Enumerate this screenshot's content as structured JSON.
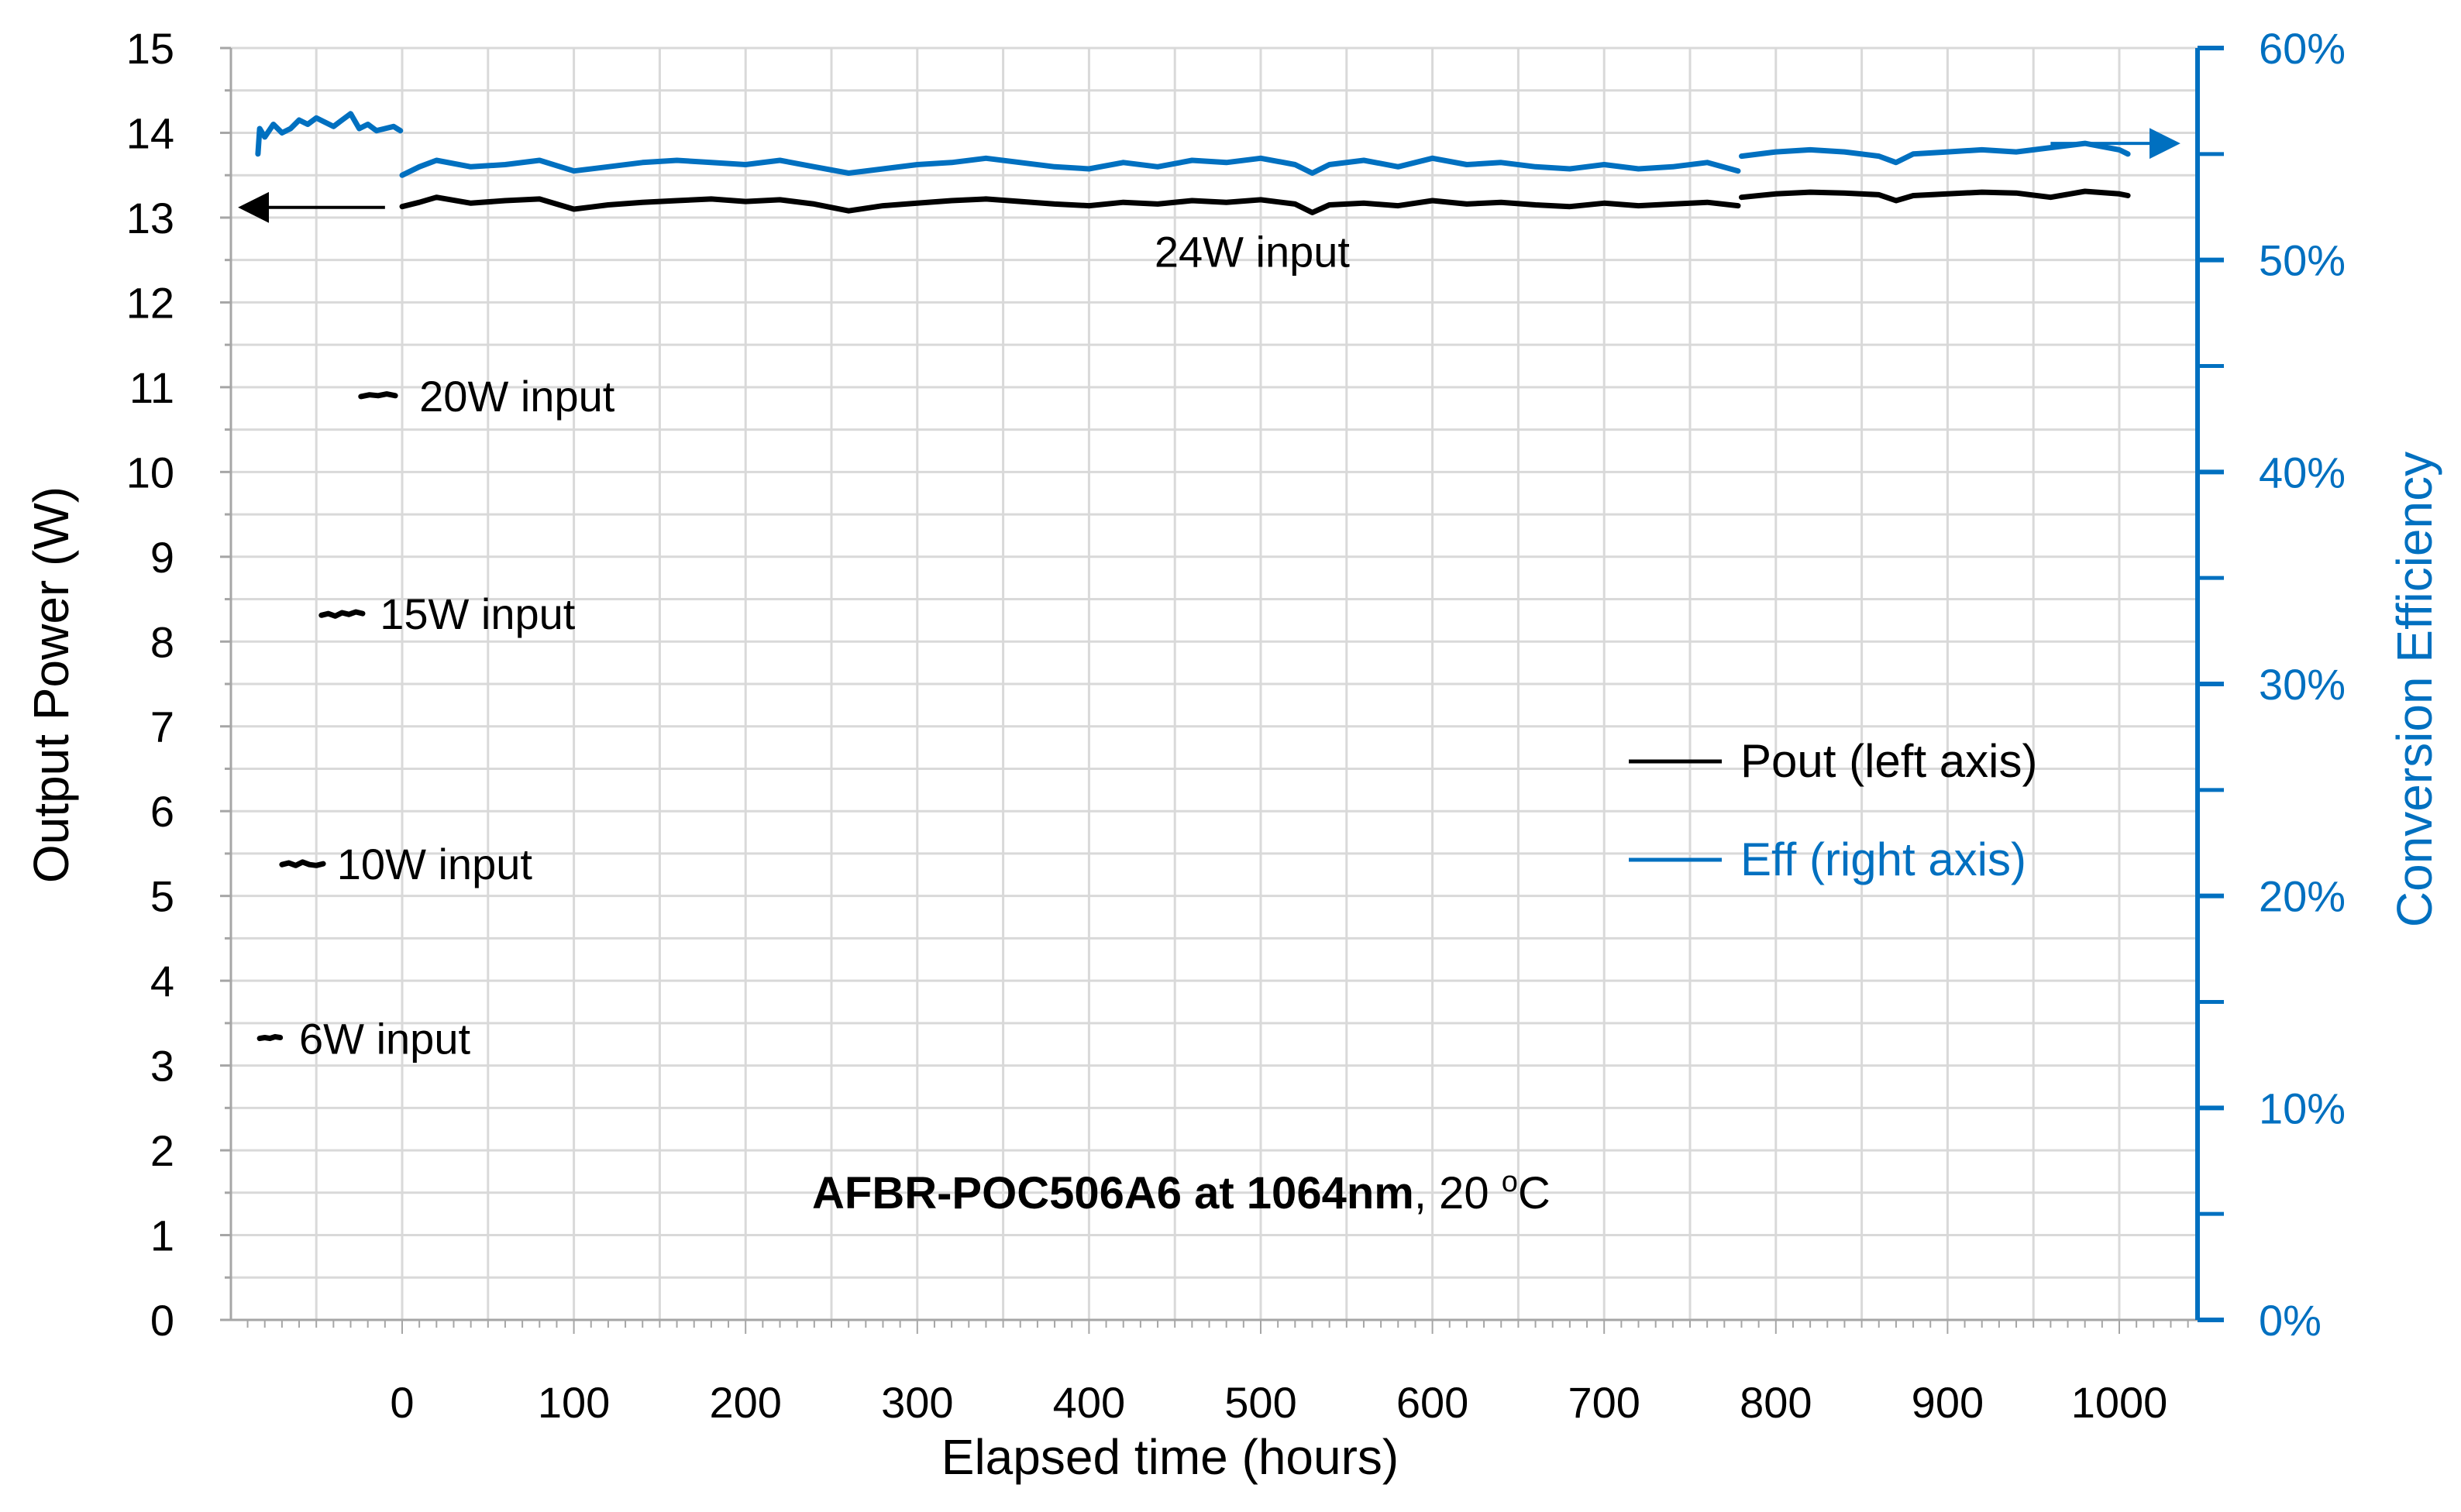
{
  "chart_data": {
    "type": "line",
    "title": "",
    "xlabel": "Elapsed time (hours)",
    "ylabel_left": "Output Power (W)",
    "ylabel_right": "Conversion Efficiency",
    "xlim": [
      -100,
      1040
    ],
    "ylim_left": [
      0,
      15
    ],
    "ylim_right": [
      0,
      60
    ],
    "x_ticks": [
      "0",
      "100",
      "200",
      "300",
      "400",
      "500",
      "600",
      "700",
      "800",
      "900",
      "1000"
    ],
    "y_left_ticks": [
      "0",
      "1",
      "2",
      "3",
      "4",
      "5",
      "6",
      "7",
      "8",
      "9",
      "10",
      "11",
      "12",
      "13",
      "14",
      "15"
    ],
    "y_right_ticks": [
      "0%",
      "10%",
      "20%",
      "30%",
      "40%",
      "50%",
      "60%"
    ],
    "grid": true,
    "legend_position": "center-right",
    "legend": [
      {
        "label": "Pout (left axis)",
        "color": "#000000"
      },
      {
        "label": "Eff (right axis)",
        "color": "#0070C0"
      }
    ],
    "series": [
      {
        "name": "Pout (left axis)",
        "axis": "left",
        "color": "#000000",
        "segments": [
          {
            "x": [
              -83,
              -80,
              -77,
              -74,
              -71
            ],
            "y": [
              3.32,
              3.33,
              3.32,
              3.34,
              3.33
            ]
          },
          {
            "x": [
              -70,
              -66,
              -62,
              -58,
              -54,
              -50,
              -46
            ],
            "y": [
              5.37,
              5.39,
              5.36,
              5.4,
              5.37,
              5.36,
              5.38
            ]
          },
          {
            "x": [
              -47,
              -43,
              -39,
              -35,
              -31,
              -27,
              -23
            ],
            "y": [
              8.31,
              8.33,
              8.3,
              8.34,
              8.32,
              8.35,
              8.33
            ]
          },
          {
            "x": [
              -24,
              -19,
              -14,
              -9,
              -4
            ],
            "y": [
              10.89,
              10.91,
              10.9,
              10.92,
              10.9
            ]
          },
          {
            "x": [
              0,
              10,
              20,
              40,
              60,
              80,
              100,
              120,
              140,
              160,
              180,
              200,
              220,
              240,
              260,
              280,
              300,
              320,
              340,
              360,
              380,
              400,
              420,
              440,
              460,
              480,
              500,
              520,
              530,
              540,
              560,
              580,
              600,
              620,
              640,
              660,
              680,
              700,
              720,
              740,
              760,
              778
            ],
            "y": [
              13.13,
              13.18,
              13.24,
              13.17,
              13.2,
              13.22,
              13.1,
              13.15,
              13.18,
              13.2,
              13.22,
              13.19,
              13.21,
              13.16,
              13.08,
              13.14,
              13.17,
              13.2,
              13.22,
              13.19,
              13.16,
              13.14,
              13.18,
              13.16,
              13.2,
              13.18,
              13.21,
              13.16,
              13.06,
              13.15,
              13.17,
              13.14,
              13.2,
              13.16,
              13.18,
              13.15,
              13.13,
              13.17,
              13.14,
              13.16,
              13.18,
              13.14
            ]
          },
          {
            "x": [
              780,
              800,
              820,
              840,
              860,
              870,
              880,
              900,
              920,
              940,
              960,
              980,
              1000,
              1005
            ],
            "y": [
              13.24,
              13.28,
              13.3,
              13.29,
              13.27,
              13.2,
              13.26,
              13.28,
              13.3,
              13.29,
              13.24,
              13.31,
              13.28,
              13.26
            ]
          }
        ]
      },
      {
        "name": "Eff (right axis)",
        "axis": "right",
        "color": "#0070C0",
        "segments": [
          {
            "x": [
              -84,
              -83,
              -80,
              -75,
              -70,
              -65,
              -60,
              -55,
              -50,
              -45,
              -40,
              -35,
              -30,
              -25,
              -20,
              -15,
              -10,
              -5,
              -1
            ],
            "y": [
              55.0,
              56.2,
              55.8,
              56.4,
              56.0,
              56.2,
              56.6,
              56.4,
              56.7,
              56.5,
              56.3,
              56.6,
              56.9,
              56.2,
              56.4,
              56.1,
              56.2,
              56.3,
              56.1
            ]
          },
          {
            "x": [
              0,
              10,
              20,
              40,
              60,
              80,
              100,
              120,
              140,
              160,
              180,
              200,
              220,
              240,
              260,
              280,
              300,
              320,
              340,
              360,
              380,
              400,
              420,
              440,
              460,
              480,
              500,
              520,
              530,
              540,
              560,
              580,
              600,
              620,
              640,
              660,
              680,
              700,
              720,
              740,
              760,
              778
            ],
            "y": [
              54.0,
              54.4,
              54.7,
              54.4,
              54.5,
              54.7,
              54.2,
              54.4,
              54.6,
              54.7,
              54.6,
              54.5,
              54.7,
              54.4,
              54.1,
              54.3,
              54.5,
              54.6,
              54.8,
              54.6,
              54.4,
              54.3,
              54.6,
              54.4,
              54.7,
              54.6,
              54.8,
              54.5,
              54.1,
              54.5,
              54.7,
              54.4,
              54.8,
              54.5,
              54.6,
              54.4,
              54.3,
              54.5,
              54.3,
              54.4,
              54.6,
              54.2
            ]
          },
          {
            "x": [
              780,
              800,
              820,
              840,
              860,
              870,
              880,
              900,
              920,
              940,
              960,
              980,
              1000,
              1005
            ],
            "y": [
              54.9,
              55.1,
              55.2,
              55.1,
              54.9,
              54.6,
              55.0,
              55.1,
              55.2,
              55.1,
              55.3,
              55.5,
              55.2,
              55.0
            ]
          }
        ]
      }
    ],
    "annotations": [
      {
        "text": "6W input",
        "x": -60,
        "y": 3.32
      },
      {
        "text": "10W input",
        "x": -38,
        "y": 5.38
      },
      {
        "text": "15W input",
        "x": -13,
        "y": 8.33
      },
      {
        "text": "20W input",
        "x": 10,
        "y": 10.9
      },
      {
        "text": "24W input",
        "x": 495,
        "y": 12.6
      }
    ],
    "arrows": [
      {
        "name": "left-axis-arrow",
        "color": "#000000",
        "direction": "left",
        "from": {
          "x": -10,
          "y": 13.12
        },
        "to": {
          "x": -92,
          "y": 13.12
        }
      },
      {
        "name": "right-axis-arrow",
        "color": "#0070C0",
        "direction": "right",
        "from": {
          "x": 960,
          "y": 55.5
        },
        "to": {
          "x": 1032,
          "y": 55.5
        }
      }
    ],
    "caption": {
      "bold": "AFBR-POC506A6 at 1064nm",
      "rest": ", 20 ",
      "superscript": "o",
      "unit": "C"
    }
  }
}
